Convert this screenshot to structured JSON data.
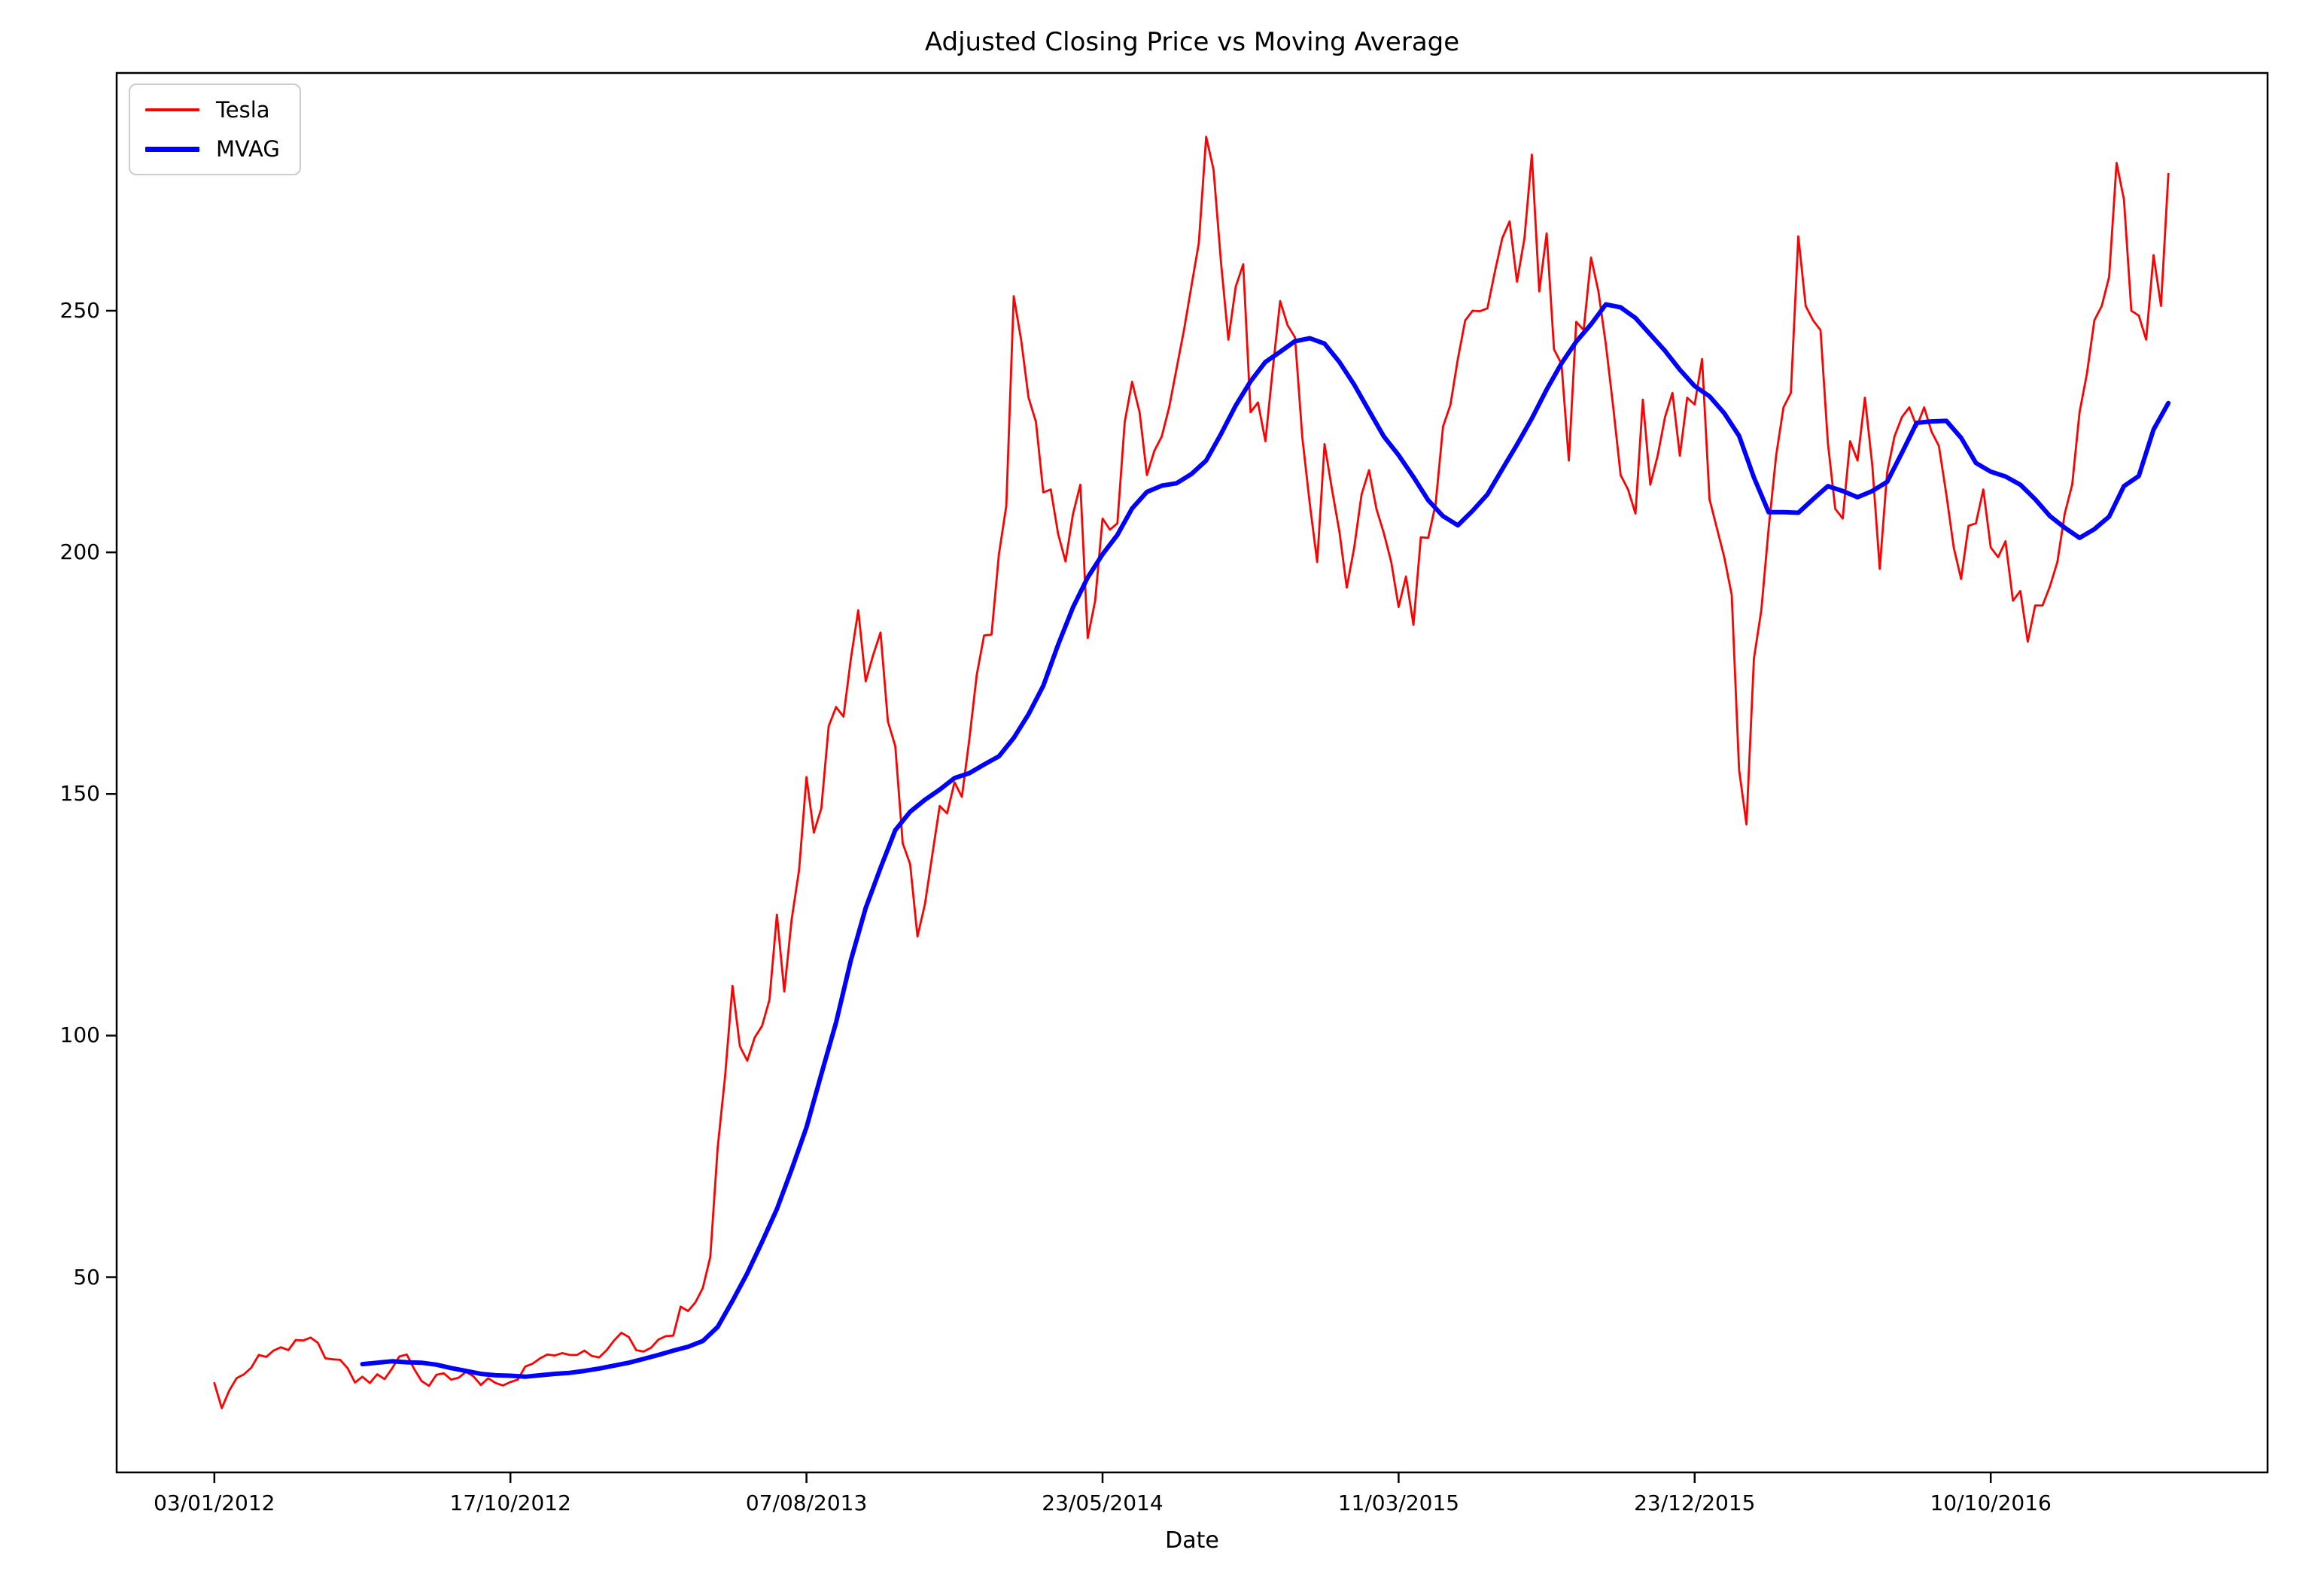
{
  "title": "Adjusted Closing Price vs Moving Average",
  "chart_data": {
    "type": "line",
    "title": "Adjusted Closing Price vs Moving Average",
    "xlabel": "Date",
    "ylabel": "",
    "grid": false,
    "legend_position": "upper left",
    "x_unit": "trading days since 03/01/2012",
    "xlim": [
      -66,
      1387
    ],
    "ylim": [
      9.6,
      299.2
    ],
    "yticks": [
      50,
      100,
      150,
      200,
      250
    ],
    "xticks": [
      {
        "day": 0,
        "label": "03/01/2012"
      },
      {
        "day": 200,
        "label": "17/10/2012"
      },
      {
        "day": 400,
        "label": "07/08/2013"
      },
      {
        "day": 600,
        "label": "23/05/2014"
      },
      {
        "day": 800,
        "label": "11/03/2015"
      },
      {
        "day": 1000,
        "label": "23/12/2015"
      },
      {
        "day": 1200,
        "label": "10/10/2016"
      }
    ],
    "series": [
      {
        "name": "Tesla",
        "color": "#ff0000",
        "start_day": 0,
        "step_days": 5,
        "values": [
          28.1,
          22.9,
          26.5,
          29.1,
          29.9,
          31.3,
          33.9,
          33.5,
          34.8,
          35.5,
          34.9,
          37.0,
          36.9,
          37.5,
          36.4,
          33.2,
          33.0,
          32.9,
          31.2,
          28.2,
          29.4,
          28.1,
          29.9,
          28.9,
          31.1,
          33.6,
          34.0,
          31.0,
          28.5,
          27.5,
          29.8,
          30.1,
          28.8,
          29.2,
          30.4,
          29.5,
          27.7,
          29.1,
          28.1,
          27.6,
          28.3,
          28.8,
          31.5,
          32.1,
          33.2,
          34.0,
          33.8,
          34.3,
          33.9,
          33.9,
          34.8,
          33.7,
          33.4,
          34.9,
          36.9,
          38.5,
          37.6,
          34.9,
          34.6,
          35.4,
          37.1,
          37.8,
          37.9,
          43.9,
          43.0,
          44.8,
          47.8,
          54.2,
          76.8,
          91.5,
          110.3,
          97.8,
          94.8,
          99.6,
          102.0,
          107.4,
          125.0,
          109.1,
          124.0,
          134.3,
          153.5,
          142.0,
          147.0,
          164.0,
          168.0,
          166.0,
          178.0,
          188.0,
          173.3,
          178.7,
          183.4,
          165.0,
          159.9,
          139.8,
          135.5,
          120.5,
          127.2,
          137.4,
          147.5,
          146.0,
          152.4,
          149.4,
          161.3,
          174.6,
          182.8,
          183.0,
          199.6,
          209.6,
          253.0,
          244.0,
          232.0,
          227.0,
          212.4,
          213.0,
          203.8,
          198.1,
          207.9,
          214.0,
          182.3,
          190.0,
          207.0,
          204.7,
          206.0,
          227.0,
          235.3,
          229.0,
          216.0,
          221.0,
          224.0,
          230.0,
          238.0,
          246.0,
          255.0,
          264.0,
          286.0,
          279.2,
          260.0,
          244.0,
          255.0,
          259.6,
          229.0,
          231.0,
          223.0,
          238.0,
          252.0,
          247.0,
          244.5,
          223.7,
          210.0,
          198.0,
          222.4,
          213.0,
          204.3,
          192.7,
          201.0,
          212.0,
          217.0,
          209.0,
          204.0,
          198.0,
          188.7,
          195.0,
          185.0,
          203.1,
          203.0,
          210.0,
          226.0,
          230.5,
          240.0,
          248.0,
          250.0,
          249.9,
          250.5,
          258.0,
          265.0,
          268.5,
          256.0,
          265.0,
          282.3,
          254.0,
          266.0,
          242.0,
          239.0,
          219.0,
          247.7,
          246.0,
          261.0,
          254.0,
          243.0,
          230.0,
          216.0,
          213.0,
          208.0,
          231.6,
          214.0,
          220.0,
          228.0,
          233.0,
          220.0,
          232.0,
          230.6,
          240.0,
          211.0,
          205.0,
          199.0,
          191.2,
          155.0,
          143.7,
          178.0,
          188.0,
          205.0,
          220.0,
          230.0,
          233.0,
          265.4,
          251.0,
          248.0,
          246.0,
          222.6,
          209.0,
          207.0,
          223.0,
          219.0,
          232.0,
          218.0,
          196.6,
          216.5,
          224.0,
          228.0,
          230.0,
          226.0,
          230.0,
          225.0,
          222.0,
          212.0,
          201.0,
          194.5,
          205.5,
          206.0,
          213.0,
          201.0,
          199.0,
          202.3,
          190.0,
          192.0,
          181.5,
          189.0,
          189.0,
          193.0,
          198.0,
          208.0,
          214.0,
          229.0,
          237.0,
          248.0,
          251.0,
          257.0,
          280.6,
          273.0,
          250.0,
          249.0,
          244.0,
          261.5,
          251.0,
          278.3
        ]
      },
      {
        "name": "MVAG",
        "color": "#0000ff",
        "start_day": 100,
        "step_days": 10,
        "values": [
          32.0,
          32.3,
          32.6,
          32.4,
          32.3,
          31.9,
          31.2,
          30.6,
          30.0,
          29.7,
          29.6,
          29.4,
          29.7,
          30.0,
          30.2,
          30.6,
          31.1,
          31.7,
          32.3,
          33.1,
          33.9,
          34.8,
          35.6,
          36.8,
          39.7,
          45.1,
          50.8,
          57.3,
          64.1,
          72.3,
          81.0,
          92.0,
          102.7,
          115.6,
          126.4,
          134.7,
          142.5,
          146.3,
          148.8,
          150.9,
          153.3,
          154.3,
          156.1,
          157.8,
          161.6,
          166.5,
          172.4,
          180.9,
          188.6,
          194.8,
          199.6,
          203.6,
          209.1,
          212.5,
          213.8,
          214.3,
          216.2,
          219.0,
          224.5,
          230.4,
          235.4,
          239.4,
          241.5,
          243.7,
          244.3,
          243.2,
          239.4,
          234.7,
          229.3,
          224.0,
          220.1,
          215.6,
          210.8,
          207.5,
          205.6,
          208.6,
          212.0,
          217.2,
          222.3,
          227.7,
          233.7,
          239.1,
          243.6,
          247.2,
          251.3,
          250.7,
          248.5,
          245.1,
          241.7,
          237.8,
          234.4,
          232.3,
          228.8,
          224.1,
          215.5,
          208.3,
          208.3,
          208.2,
          211.0,
          213.7,
          212.7,
          211.4,
          212.7,
          214.6,
          220.6,
          226.8,
          227.1,
          227.2,
          223.7,
          218.5,
          216.7,
          215.7,
          214.0,
          211.0,
          207.5,
          205.1,
          203.0,
          204.8,
          207.4,
          213.7,
          215.8,
          225.4,
          230.9
        ]
      }
    ]
  }
}
